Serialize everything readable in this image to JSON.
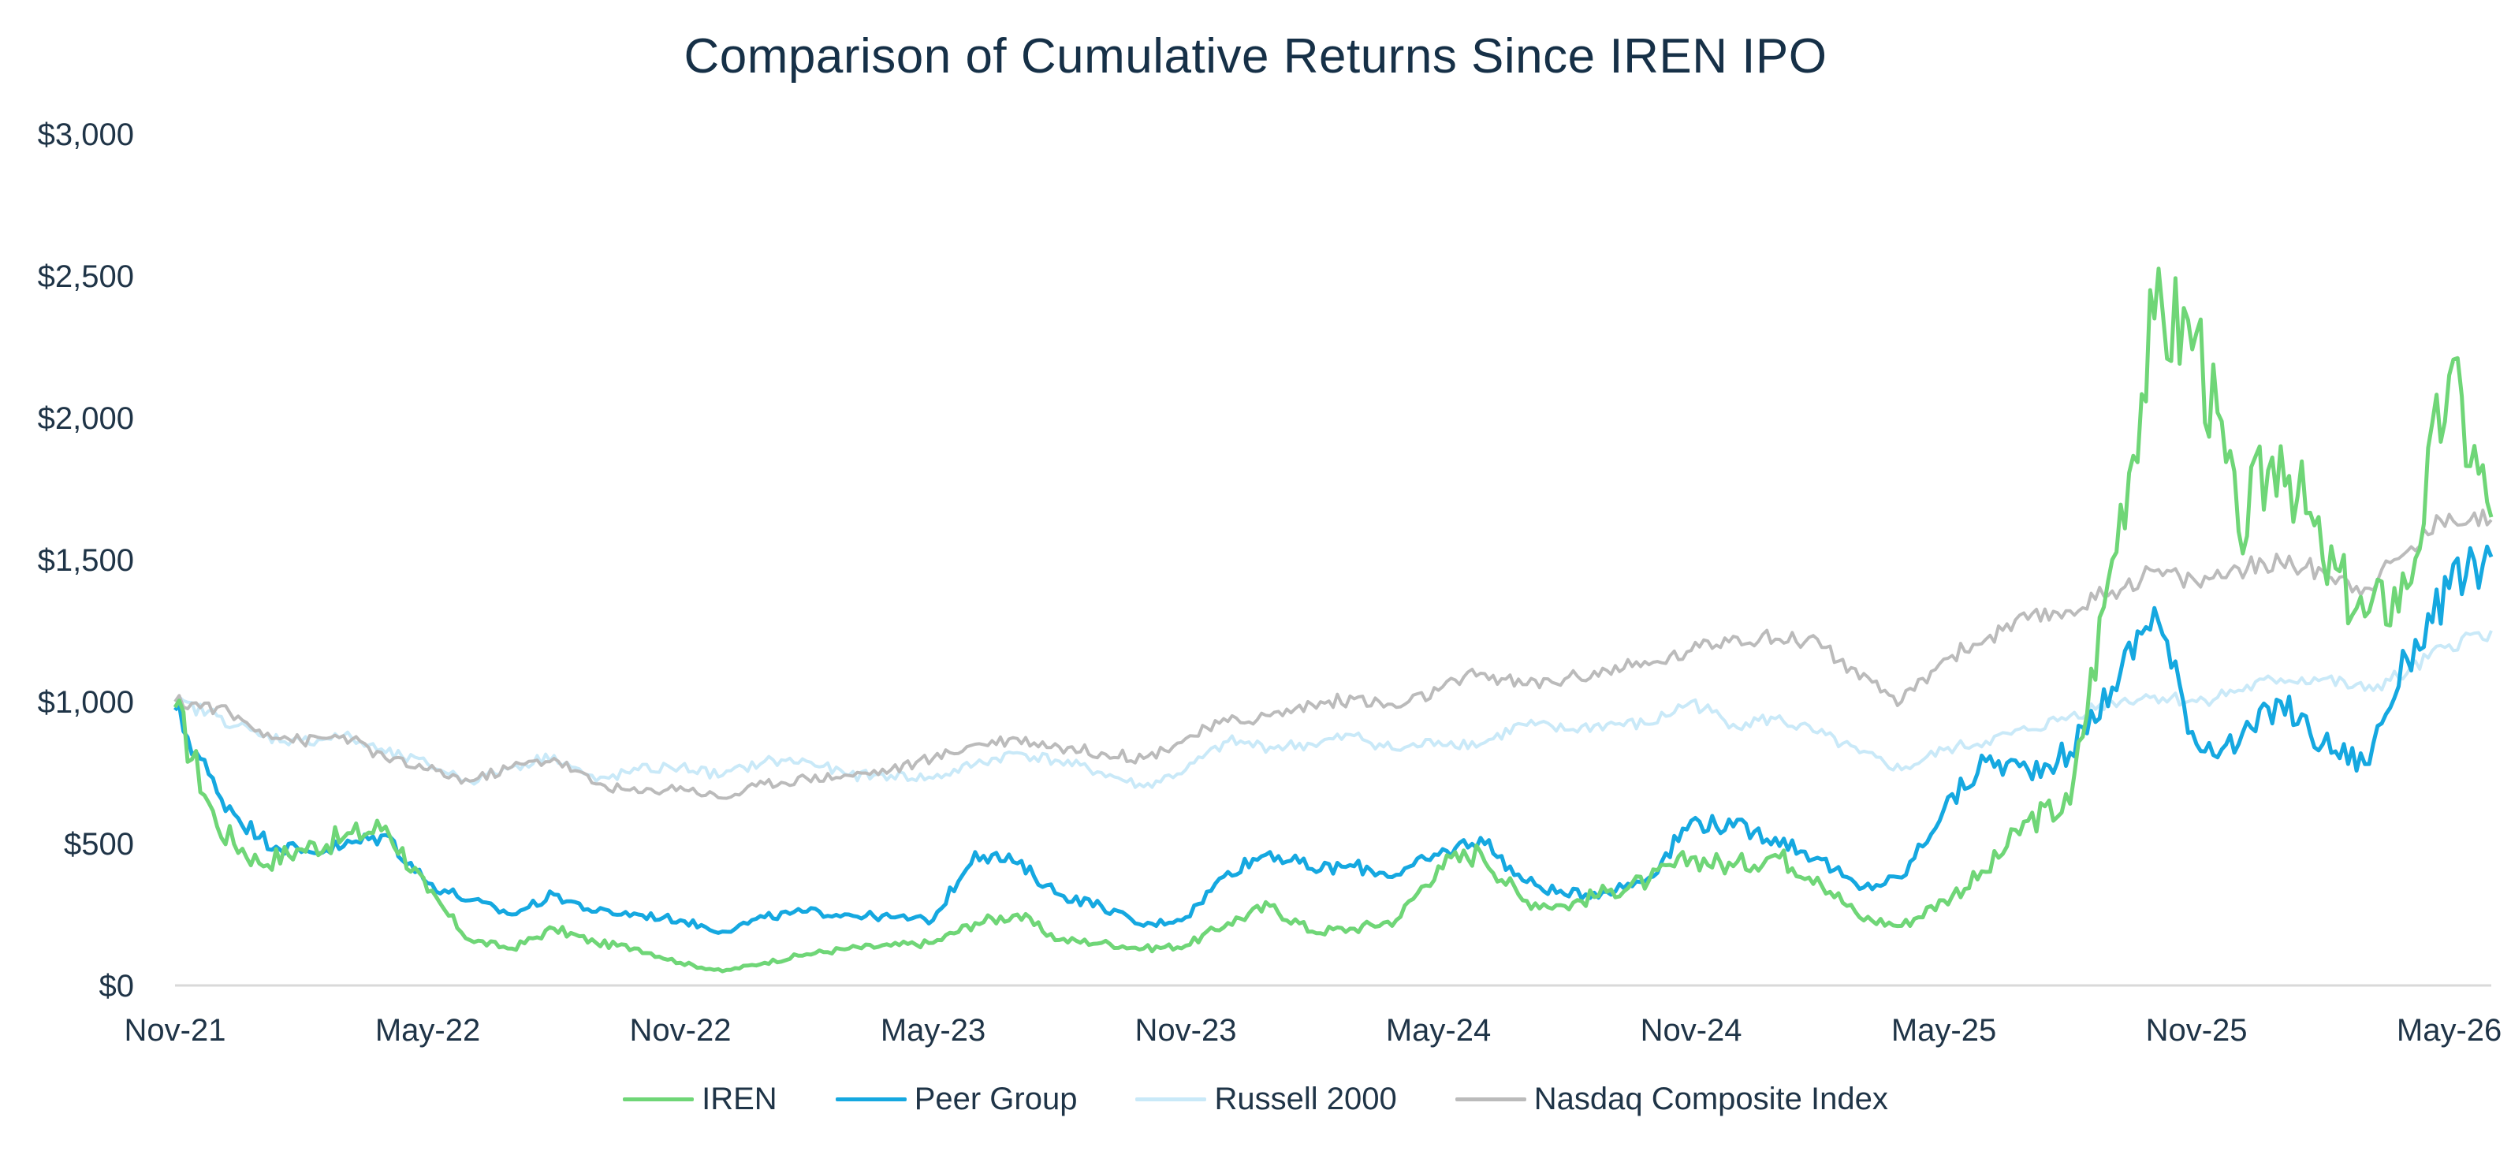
{
  "chart_data": {
    "type": "line",
    "title": "Comparison of Cumulative Returns Since IREN IPO",
    "xlabel": "",
    "ylabel": "",
    "ylim": [
      0,
      3000
    ],
    "yticks": [
      0,
      500,
      1000,
      1500,
      2000,
      2500,
      3000
    ],
    "ytick_labels": [
      "$0",
      "$500",
      "$1,000",
      "$1,500",
      "$2,000",
      "$2,500",
      "$3,000"
    ],
    "x_range": [
      "2021-11",
      "2026-06"
    ],
    "xtick_labels": [
      "Nov-21",
      "May-22",
      "Nov-22",
      "May-23",
      "Nov-23",
      "May-24",
      "Nov-24",
      "May-25",
      "Nov-25",
      "May-26"
    ],
    "legend_position": "bottom",
    "grid": false,
    "series": [
      {
        "name": "IREN",
        "color": "#6fd677",
        "points": [
          [
            "2021-11",
            980
          ],
          [
            "2021-12",
            560
          ],
          [
            "2022-01",
            430
          ],
          [
            "2022-02",
            480
          ],
          [
            "2022-03",
            520
          ],
          [
            "2022-04",
            560
          ],
          [
            "2022-05",
            330
          ],
          [
            "2022-06",
            160
          ],
          [
            "2022-07",
            130
          ],
          [
            "2022-08",
            200
          ],
          [
            "2022-09",
            150
          ],
          [
            "2022-10",
            130
          ],
          [
            "2022-11",
            80
          ],
          [
            "2022-12",
            50
          ],
          [
            "2023-01",
            80
          ],
          [
            "2023-02",
            110
          ],
          [
            "2023-03",
            130
          ],
          [
            "2023-04",
            140
          ],
          [
            "2023-05",
            150
          ],
          [
            "2023-06",
            220
          ],
          [
            "2023-07",
            250
          ],
          [
            "2023-08",
            160
          ],
          [
            "2023-09",
            150
          ],
          [
            "2023-10",
            130
          ],
          [
            "2023-11",
            140
          ],
          [
            "2023-12",
            220
          ],
          [
            "2024-01",
            280
          ],
          [
            "2024-02",
            190
          ],
          [
            "2024-03",
            200
          ],
          [
            "2024-04",
            230
          ],
          [
            "2024-05",
            420
          ],
          [
            "2024-06",
            470
          ],
          [
            "2024-07",
            300
          ],
          [
            "2024-08",
            280
          ],
          [
            "2024-09",
            330
          ],
          [
            "2024-10",
            370
          ],
          [
            "2024-11",
            450
          ],
          [
            "2024-12",
            420
          ],
          [
            "2025-01",
            460
          ],
          [
            "2025-02",
            380
          ],
          [
            "2025-03",
            240
          ],
          [
            "2025-04",
            210
          ],
          [
            "2025-05",
            300
          ],
          [
            "2025-06",
            400
          ],
          [
            "2025-07",
            580
          ],
          [
            "2025-08",
            640
          ],
          [
            "2025-09",
            1500
          ],
          [
            "2025-10",
            2350
          ],
          [
            "2025-11",
            2300
          ],
          [
            "2025-12",
            1600
          ],
          [
            "2026-01",
            1900
          ],
          [
            "2026-02",
            1500
          ],
          [
            "2026-03",
            1300
          ],
          [
            "2026-04",
            1400
          ],
          [
            "2026-05",
            2150
          ],
          [
            "2026-06",
            1650
          ]
        ]
      },
      {
        "name": "Peer Group",
        "color": "#15a8e0",
        "points": [
          [
            "2021-11",
            970
          ],
          [
            "2021-12",
            680
          ],
          [
            "2022-01",
            520
          ],
          [
            "2022-02",
            470
          ],
          [
            "2022-03",
            490
          ],
          [
            "2022-04",
            530
          ],
          [
            "2022-05",
            360
          ],
          [
            "2022-06",
            300
          ],
          [
            "2022-07",
            250
          ],
          [
            "2022-08",
            320
          ],
          [
            "2022-09",
            260
          ],
          [
            "2022-10",
            250
          ],
          [
            "2022-11",
            230
          ],
          [
            "2022-12",
            190
          ],
          [
            "2023-01",
            240
          ],
          [
            "2023-02",
            260
          ],
          [
            "2023-03",
            250
          ],
          [
            "2023-04",
            240
          ],
          [
            "2023-05",
            230
          ],
          [
            "2023-06",
            470
          ],
          [
            "2023-07",
            430
          ],
          [
            "2023-08",
            320
          ],
          [
            "2023-09",
            280
          ],
          [
            "2023-10",
            210
          ],
          [
            "2023-11",
            240
          ],
          [
            "2023-12",
            400
          ],
          [
            "2024-01",
            470
          ],
          [
            "2024-02",
            410
          ],
          [
            "2024-03",
            420
          ],
          [
            "2024-04",
            390
          ],
          [
            "2024-05",
            460
          ],
          [
            "2024-06",
            520
          ],
          [
            "2024-07",
            370
          ],
          [
            "2024-08",
            320
          ],
          [
            "2024-09",
            330
          ],
          [
            "2024-10",
            380
          ],
          [
            "2024-11",
            580
          ],
          [
            "2024-12",
            560
          ],
          [
            "2025-01",
            520
          ],
          [
            "2025-02",
            450
          ],
          [
            "2025-03",
            340
          ],
          [
            "2025-04",
            380
          ],
          [
            "2025-05",
            620
          ],
          [
            "2025-06",
            790
          ],
          [
            "2025-07",
            760
          ],
          [
            "2025-08",
            820
          ],
          [
            "2025-09",
            1050
          ],
          [
            "2025-10",
            1330
          ],
          [
            "2025-11",
            850
          ],
          [
            "2025-12",
            850
          ],
          [
            "2026-01",
            1000
          ],
          [
            "2026-02",
            850
          ],
          [
            "2026-03",
            780
          ],
          [
            "2026-04",
            1150
          ],
          [
            "2026-05",
            1400
          ],
          [
            "2026-06",
            1510
          ]
        ]
      },
      {
        "name": "Russell 2000",
        "color": "#c9e9f8",
        "points": [
          [
            "2021-11",
            1000
          ],
          [
            "2021-12",
            950
          ],
          [
            "2022-01",
            880
          ],
          [
            "2022-02",
            860
          ],
          [
            "2022-03",
            880
          ],
          [
            "2022-04",
            820
          ],
          [
            "2022-05",
            780
          ],
          [
            "2022-06",
            720
          ],
          [
            "2022-07",
            770
          ],
          [
            "2022-08",
            810
          ],
          [
            "2022-09",
            720
          ],
          [
            "2022-10",
            760
          ],
          [
            "2022-11",
            770
          ],
          [
            "2022-12",
            740
          ],
          [
            "2023-01",
            790
          ],
          [
            "2023-02",
            790
          ],
          [
            "2023-03",
            740
          ],
          [
            "2023-04",
            740
          ],
          [
            "2023-05",
            730
          ],
          [
            "2023-06",
            780
          ],
          [
            "2023-07",
            820
          ],
          [
            "2023-08",
            790
          ],
          [
            "2023-09",
            750
          ],
          [
            "2023-10",
            700
          ],
          [
            "2023-11",
            760
          ],
          [
            "2023-12",
            860
          ],
          [
            "2024-01",
            840
          ],
          [
            "2024-02",
            850
          ],
          [
            "2024-03",
            880
          ],
          [
            "2024-04",
            830
          ],
          [
            "2024-05",
            860
          ],
          [
            "2024-06",
            850
          ],
          [
            "2024-07",
            920
          ],
          [
            "2024-08",
            900
          ],
          [
            "2024-09",
            920
          ],
          [
            "2024-10",
            920
          ],
          [
            "2024-11",
            1000
          ],
          [
            "2024-12",
            920
          ],
          [
            "2025-01",
            940
          ],
          [
            "2025-02",
            890
          ],
          [
            "2025-03",
            820
          ],
          [
            "2025-04",
            760
          ],
          [
            "2025-05",
            830
          ],
          [
            "2025-06",
            860
          ],
          [
            "2025-07",
            900
          ],
          [
            "2025-08",
            950
          ],
          [
            "2025-09",
            1000
          ],
          [
            "2025-10",
            1020
          ],
          [
            "2025-11",
            1000
          ],
          [
            "2025-12",
            1040
          ],
          [
            "2026-01",
            1080
          ],
          [
            "2026-02",
            1080
          ],
          [
            "2026-03",
            1040
          ],
          [
            "2026-04",
            1100
          ],
          [
            "2026-05",
            1200
          ],
          [
            "2026-06",
            1250
          ]
        ]
      },
      {
        "name": "Nasdaq Composite Index",
        "color": "#bbbbbb",
        "points": [
          [
            "2021-11",
            1000
          ],
          [
            "2021-12",
            980
          ],
          [
            "2022-01",
            900
          ],
          [
            "2022-02",
            860
          ],
          [
            "2022-03",
            880
          ],
          [
            "2022-04",
            800
          ],
          [
            "2022-05",
            760
          ],
          [
            "2022-06",
            720
          ],
          [
            "2022-07",
            770
          ],
          [
            "2022-08",
            800
          ],
          [
            "2022-09",
            710
          ],
          [
            "2022-10",
            680
          ],
          [
            "2022-11",
            700
          ],
          [
            "2022-12",
            660
          ],
          [
            "2023-01",
            710
          ],
          [
            "2023-02",
            730
          ],
          [
            "2023-03",
            740
          ],
          [
            "2023-04",
            760
          ],
          [
            "2023-05",
            800
          ],
          [
            "2023-06",
            850
          ],
          [
            "2023-07",
            870
          ],
          [
            "2023-08",
            840
          ],
          [
            "2023-09",
            820
          ],
          [
            "2023-10",
            800
          ],
          [
            "2023-11",
            870
          ],
          [
            "2023-12",
            930
          ],
          [
            "2024-01",
            950
          ],
          [
            "2024-02",
            990
          ],
          [
            "2024-03",
            1010
          ],
          [
            "2024-04",
            980
          ],
          [
            "2024-05",
            1040
          ],
          [
            "2024-06",
            1100
          ],
          [
            "2024-07",
            1060
          ],
          [
            "2024-08",
            1080
          ],
          [
            "2024-09",
            1110
          ],
          [
            "2024-10",
            1130
          ],
          [
            "2024-11",
            1180
          ],
          [
            "2024-12",
            1230
          ],
          [
            "2025-01",
            1220
          ],
          [
            "2025-02",
            1220
          ],
          [
            "2025-03",
            1080
          ],
          [
            "2025-04",
            1000
          ],
          [
            "2025-05",
            1150
          ],
          [
            "2025-06",
            1220
          ],
          [
            "2025-07",
            1290
          ],
          [
            "2025-08",
            1320
          ],
          [
            "2025-09",
            1390
          ],
          [
            "2025-10",
            1460
          ],
          [
            "2025-11",
            1420
          ],
          [
            "2025-12",
            1470
          ],
          [
            "2026-01",
            1490
          ],
          [
            "2026-02",
            1460
          ],
          [
            "2026-03",
            1400
          ],
          [
            "2026-04",
            1530
          ],
          [
            "2026-05",
            1660
          ],
          [
            "2026-06",
            1640
          ]
        ]
      }
    ]
  }
}
